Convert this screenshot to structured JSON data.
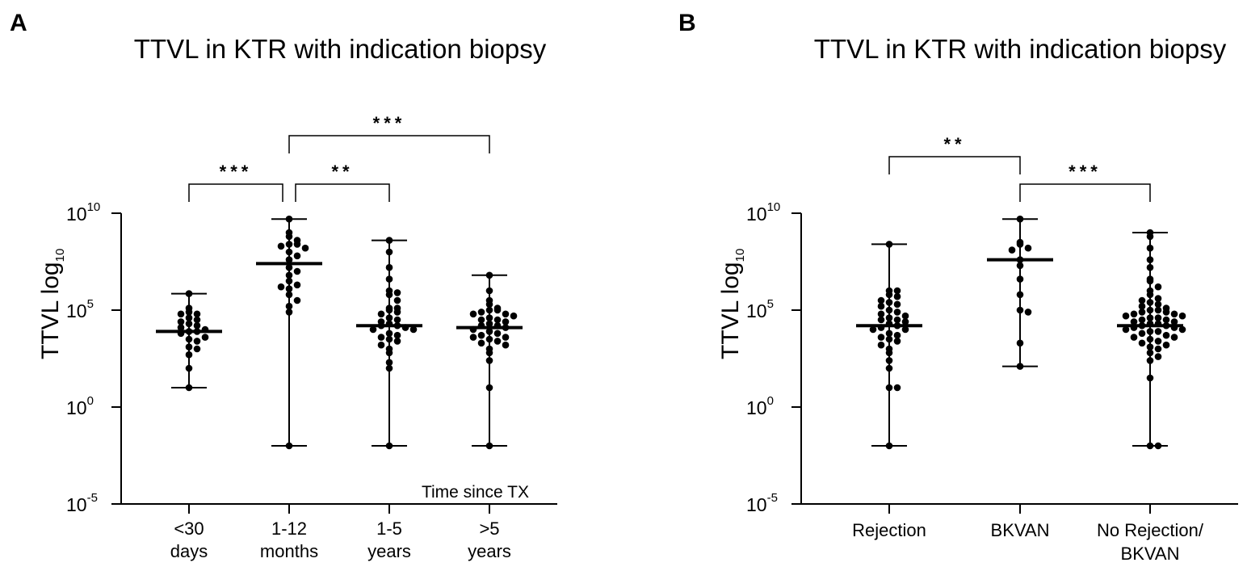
{
  "chart_data": [
    {
      "type": "scatter",
      "panel": "A",
      "title": "TTVL in KTR with indication biopsy",
      "ylabel": "TTVL log",
      "ylabel_subscript": "10",
      "yscale": "log10",
      "ylim_exponent": [
        -5,
        10
      ],
      "yticks": [
        {
          "exp": 10,
          "base": "10",
          "sup": "10"
        },
        {
          "exp": 5,
          "base": "10",
          "sup": "5"
        },
        {
          "exp": 0,
          "base": "10",
          "sup": "0"
        },
        {
          "exp": -5,
          "base": "10",
          "sup": "-5"
        }
      ],
      "axis_note": "Time since TX",
      "categories": [
        {
          "lines": [
            "<30",
            "days"
          ],
          "median": 3.9,
          "min": 1.0,
          "max": 5.85,
          "points": [
            5.85,
            5.1,
            4.9,
            4.8,
            4.8,
            4.6,
            4.5,
            4.4,
            4.3,
            4.2,
            4.1,
            4.0,
            3.9,
            3.9,
            3.8,
            3.6,
            3.5,
            3.4,
            3.1,
            3.0,
            2.7,
            2.0,
            1.0
          ]
        },
        {
          "lines": [
            "1-12",
            "months"
          ],
          "median": 7.4,
          "min": -2.0,
          "max": 9.7,
          "points": [
            9.7,
            9.0,
            8.8,
            8.6,
            8.4,
            8.4,
            8.3,
            8.2,
            8.0,
            7.8,
            7.6,
            7.2,
            7.0,
            6.8,
            6.5,
            6.3,
            6.2,
            6.1,
            5.8,
            5.5,
            5.2,
            4.9,
            -2.0
          ]
        },
        {
          "lines": [
            "1-5",
            "years"
          ],
          "median": 4.2,
          "min": -2.0,
          "max": 8.6,
          "points": [
            8.6,
            8.0,
            7.2,
            6.6,
            6.0,
            5.9,
            5.8,
            5.5,
            5.1,
            5.1,
            5.0,
            4.9,
            4.8,
            4.6,
            4.5,
            4.4,
            4.3,
            4.2,
            4.2,
            4.1,
            4.0,
            4.0,
            3.8,
            3.7,
            3.6,
            3.5,
            3.4,
            3.2,
            3.0,
            2.8,
            2.3,
            2.0,
            -2.0
          ]
        },
        {
          "lines": [
            ">5",
            "years"
          ],
          "median": 4.1,
          "min": -2.0,
          "max": 6.8,
          "points": [
            6.8,
            6.0,
            5.5,
            5.3,
            5.1,
            5.0,
            5.0,
            4.9,
            4.8,
            4.8,
            4.7,
            4.6,
            4.5,
            4.5,
            4.4,
            4.3,
            4.2,
            4.2,
            4.1,
            4.0,
            3.9,
            3.8,
            3.7,
            3.6,
            3.6,
            3.5,
            3.4,
            3.3,
            3.2,
            3.0,
            2.8,
            2.4,
            1.0,
            -2.0
          ]
        }
      ],
      "significance": [
        {
          "from": 0,
          "to": 1,
          "label": "***",
          "level": 0
        },
        {
          "from": 1,
          "to": 2,
          "label": "**",
          "level": 0
        },
        {
          "from": 1,
          "to": 3,
          "label": "***",
          "level": 1
        }
      ]
    },
    {
      "type": "scatter",
      "panel": "B",
      "title": "TTVL in KTR with indication biopsy",
      "ylabel": "TTVL log",
      "ylabel_subscript": "10",
      "yscale": "log10",
      "ylim_exponent": [
        -5,
        10
      ],
      "yticks": [
        {
          "exp": 10,
          "base": "10",
          "sup": "10"
        },
        {
          "exp": 5,
          "base": "10",
          "sup": "5"
        },
        {
          "exp": 0,
          "base": "10",
          "sup": "0"
        },
        {
          "exp": -5,
          "base": "10",
          "sup": "-5"
        }
      ],
      "categories": [
        {
          "lines": [
            "Rejection"
          ],
          "median": 4.2,
          "min": -2.0,
          "max": 8.4,
          "points": [
            8.4,
            6.0,
            6.0,
            5.8,
            5.7,
            5.5,
            5.4,
            5.3,
            5.2,
            5.0,
            4.9,
            4.8,
            4.7,
            4.6,
            4.5,
            4.5,
            4.4,
            4.3,
            4.2,
            4.1,
            4.0,
            4.0,
            3.8,
            3.7,
            3.6,
            3.5,
            3.4,
            3.2,
            3.0,
            2.8,
            2.4,
            2.0,
            1.0,
            1.0,
            -2.0
          ]
        },
        {
          "lines": [
            "BKVAN"
          ],
          "median": 7.6,
          "min": 2.1,
          "max": 9.7,
          "points": [
            9.7,
            8.5,
            8.4,
            8.2,
            8.1,
            7.6,
            7.3,
            6.6,
            5.8,
            5.0,
            4.9,
            3.3,
            2.1
          ]
        },
        {
          "lines": [
            "No  Rejection/",
            "BKVAN"
          ],
          "median": 4.2,
          "min": -2.0,
          "max": 9.0,
          "points": [
            9.0,
            8.8,
            8.2,
            7.6,
            7.2,
            6.6,
            6.5,
            6.2,
            6.0,
            5.8,
            5.6,
            5.5,
            5.4,
            5.3,
            5.2,
            5.1,
            5.0,
            5.0,
            4.9,
            4.9,
            4.8,
            4.8,
            4.7,
            4.7,
            4.6,
            4.6,
            4.5,
            4.5,
            4.4,
            4.4,
            4.3,
            4.3,
            4.2,
            4.2,
            4.1,
            4.1,
            4.0,
            4.0,
            3.9,
            3.9,
            3.8,
            3.7,
            3.6,
            3.6,
            3.5,
            3.4,
            3.3,
            3.2,
            3.1,
            3.0,
            2.8,
            2.6,
            2.4,
            1.5,
            -2.0,
            -2.0
          ]
        }
      ],
      "significance": [
        {
          "from": 0,
          "to": 1,
          "label": "**",
          "level": 1
        },
        {
          "from": 1,
          "to": 2,
          "label": "***",
          "level": 0
        }
      ]
    }
  ]
}
